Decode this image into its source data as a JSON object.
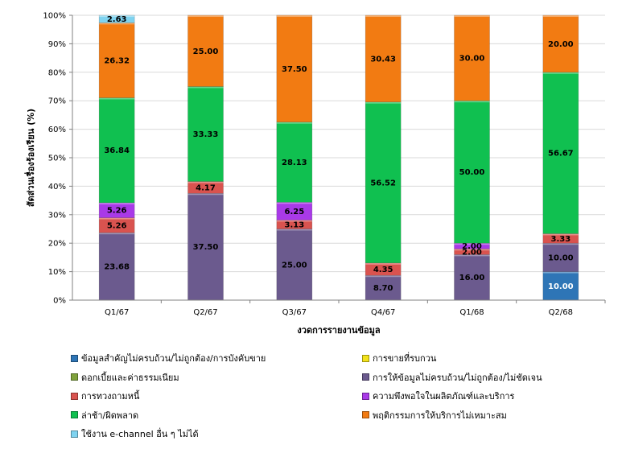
{
  "chart_data": {
    "type": "bar",
    "stacked": true,
    "percent": true,
    "categories": [
      "Q1/67",
      "Q2/67",
      "Q3/67",
      "Q4/67",
      "Q1/68",
      "Q2/68"
    ],
    "xlabel": "งวดการรายงานข้อมูล",
    "ylabel": "สัดส่วนเรื่องร้องเรียน (%)",
    "ylim": [
      0,
      100
    ],
    "yticks": [
      "0%",
      "10%",
      "20%",
      "30%",
      "40%",
      "50%",
      "60%",
      "70%",
      "80%",
      "90%",
      "100%"
    ],
    "legend_position": "bottom",
    "series": [
      {
        "name": "ข้อมูลสำคัญไม่ครบถ้วน/ไม่ถูกต้อง/การบังคับขาย",
        "color": "#2E75B6",
        "values": [
          0,
          0,
          0,
          0,
          0,
          10.0
        ],
        "labels": [
          "",
          "",
          "",
          "",
          "",
          "10.00"
        ],
        "label_color": "#ffffff"
      },
      {
        "name": "การขายที่รบกวน",
        "color": "#F2E21B",
        "values": [
          0,
          0,
          0,
          0,
          0,
          0
        ],
        "labels": [
          "",
          "",
          "",
          "",
          "",
          ""
        ],
        "label_color": "#000000"
      },
      {
        "name": "ดอกเบี้ยและค่าธรรมเนียม",
        "color": "#7FA13C",
        "values": [
          0,
          0,
          0,
          0,
          0,
          0
        ],
        "labels": [
          "",
          "",
          "",
          "",
          "",
          ""
        ],
        "label_color": "#000000"
      },
      {
        "name": "การให้ข้อมูลไม่ครบถ้วน/ไม่ถูกต้อง/ไม่ชัดเจน",
        "color": "#6B5A8E",
        "values": [
          23.68,
          37.5,
          25.0,
          8.7,
          16.0,
          10.0
        ],
        "labels": [
          "23.68",
          "37.50",
          "25.00",
          "8.70",
          "16.00",
          "10.00"
        ],
        "label_color": "#000000"
      },
      {
        "name": "การทวงถามหนี้",
        "color": "#D9534F",
        "values": [
          5.26,
          4.17,
          3.13,
          4.35,
          2.0,
          3.33
        ],
        "labels": [
          "5.26",
          "4.17",
          "3.13",
          "4.35",
          "2.00",
          "3.33"
        ],
        "label_color": "#000000"
      },
      {
        "name": "ความพึงพอใจในผลิตภัณฑ์และบริการ",
        "color": "#A93AE8",
        "values": [
          5.26,
          0,
          6.25,
          0,
          2.0,
          0
        ],
        "labels": [
          "5.26",
          "",
          "6.25",
          "",
          "2.00",
          ""
        ],
        "label_color": "#000000"
      },
      {
        "name": "ล่าช้า/ผิดพลาด",
        "color": "#10C050",
        "values": [
          36.84,
          33.33,
          28.13,
          56.52,
          50.0,
          56.67
        ],
        "labels": [
          "36.84",
          "33.33",
          "28.13",
          "56.52",
          "50.00",
          "56.67"
        ],
        "label_color": "#000000"
      },
      {
        "name": "พฤติกรรมการให้บริการไม่เหมาะสม",
        "color": "#F27B12",
        "values": [
          26.32,
          25.0,
          37.5,
          30.43,
          30.0,
          20.0
        ],
        "labels": [
          "26.32",
          "25.00",
          "37.50",
          "30.43",
          "30.00",
          "20.00"
        ],
        "label_color": "#000000"
      },
      {
        "name": "ใช้งาน e-channel อื่น ๆ ไม่ได้",
        "color": "#7FD3F0",
        "values": [
          2.63,
          0,
          0,
          0,
          0,
          0
        ],
        "labels": [
          "2.63",
          "",
          "",
          "",
          "",
          ""
        ],
        "label_color": "#000000"
      }
    ]
  }
}
